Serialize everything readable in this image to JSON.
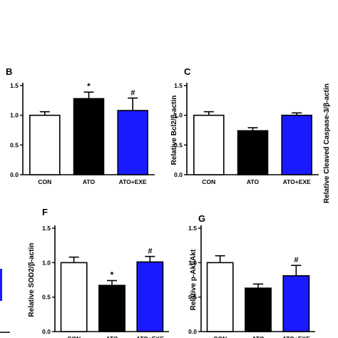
{
  "chart_data": [
    {
      "type": "bar",
      "panel": "B",
      "categories": [
        "CON",
        "ATO",
        "ATO+EXE"
      ],
      "values": [
        1.0,
        1.28,
        1.08
      ],
      "errors": [
        0.06,
        0.11,
        0.21
      ],
      "annotations": [
        "",
        "*",
        "#"
      ],
      "colors": [
        "#ffffff",
        "#000000",
        "#1a1aff"
      ],
      "ylabel": "",
      "ylim": [
        0,
        1.5
      ],
      "yticks": [
        "0.0",
        "0.5",
        "1.0",
        "1.5"
      ]
    },
    {
      "type": "bar",
      "panel": "C",
      "categories": [
        "CON",
        "ATO",
        "ATO+EXE"
      ],
      "values": [
        1.0,
        0.74,
        1.0
      ],
      "errors": [
        0.06,
        0.05,
        0.04
      ],
      "annotations": [
        "",
        "",
        ""
      ],
      "colors": [
        "#ffffff",
        "#000000",
        "#1a1aff"
      ],
      "ylabel": "Relative Bcl2/β-actin",
      "ylim": [
        0,
        1.5
      ],
      "yticks": [
        "0.0",
        "0.5",
        "1.0",
        "1.5"
      ]
    },
    {
      "type": "bar",
      "panel": "F",
      "categories": [
        "CON",
        "ATO",
        "ATO+EXE"
      ],
      "values": [
        1.0,
        0.67,
        1.01
      ],
      "errors": [
        0.08,
        0.07,
        0.08
      ],
      "annotations": [
        "",
        "*",
        "#"
      ],
      "colors": [
        "#ffffff",
        "#000000",
        "#1a1aff"
      ],
      "ylabel": "Relative SOD2/β-actin",
      "ylim": [
        0,
        1.5
      ],
      "yticks": [
        "0.0",
        "0.5",
        "1.0",
        "1.5"
      ]
    },
    {
      "type": "bar",
      "panel": "G",
      "categories": [
        "CON",
        "ATO",
        "ATO+EXE"
      ],
      "values": [
        1.0,
        0.63,
        0.81
      ],
      "errors": [
        0.1,
        0.06,
        0.15
      ],
      "annotations": [
        "",
        "",
        "#"
      ],
      "colors": [
        "#ffffff",
        "#000000",
        "#1a1aff"
      ],
      "ylabel": "Relative p-Akt/Akt",
      "ylim": [
        0,
        1.5
      ],
      "yticks": [
        "0.0",
        "0.5",
        "1.0",
        "1.5"
      ]
    }
  ],
  "side_label": "Relative Cleaved Caspase-3/β-actin"
}
